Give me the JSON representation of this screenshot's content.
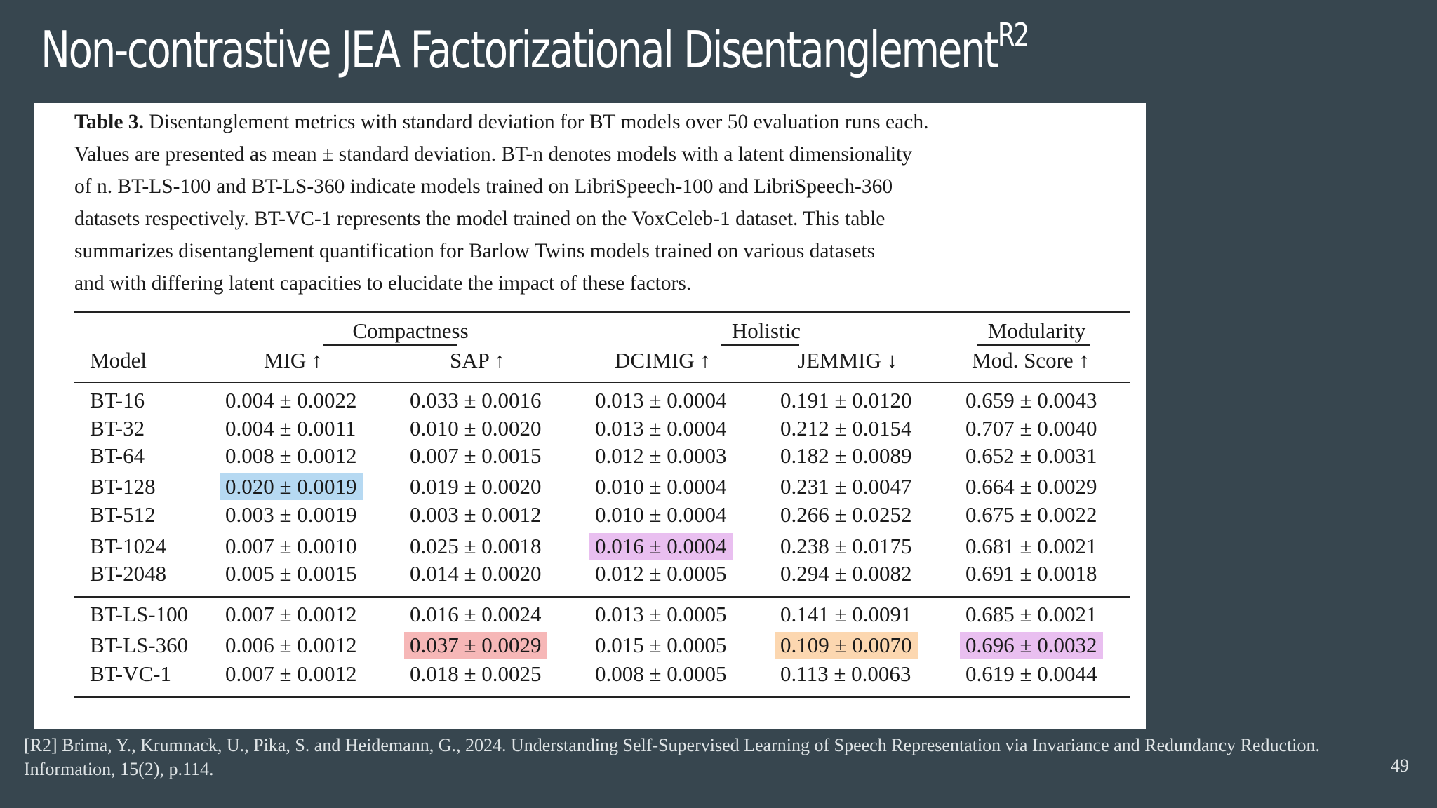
{
  "slide": {
    "title": "Non-contrastive JEA Factorizational Disentanglement",
    "title_sup": "R2",
    "page_number": "49",
    "footer": "[R2] Brima, Y., Krumnack, U., Pika, S. and Heidemann, G., 2024. Understanding Self-Supervised Learning of Speech Representation via Invariance and Redundancy Reduction. Information, 15(2), p.114."
  },
  "caption": {
    "label": "Table 3.",
    "line1": "Disentanglement metrics with standard deviation for BT models over 50 evaluation runs each.",
    "line2": "Values are presented as mean ± standard deviation. BT-n denotes models with a latent dimensionality",
    "line3": "of n.  BT-LS-100 and BT-LS-360 indicate models trained on LibriSpeech-100 and LibriSpeech-360",
    "line4": "datasets respectively. BT-VC-1 represents the model trained on the VoxCeleb-1 dataset. This table",
    "line5": "summarizes disentanglement quantification for Barlow Twins models trained on various datasets",
    "line6": "and with differing latent capacities to elucidate the impact of these factors."
  },
  "table": {
    "groups": [
      "Compactness",
      "Holistic",
      "Modularity"
    ],
    "columns": [
      "Model",
      "MIG ↑",
      "SAP ↑",
      "DCIMIG ↑",
      "JEMMIG ↓",
      "Mod. Score ↑"
    ],
    "rows": [
      [
        "BT-16",
        "0.004 ± 0.0022",
        "0.033 ± 0.0016",
        "0.013 ± 0.0004",
        "0.191 ± 0.0120",
        "0.659 ± 0.0043"
      ],
      [
        "BT-32",
        "0.004 ± 0.0011",
        "0.010 ± 0.0020",
        "0.013 ± 0.0004",
        "0.212 ± 0.0154",
        "0.707 ± 0.0040"
      ],
      [
        "BT-64",
        "0.008 ± 0.0012",
        "0.007 ± 0.0015",
        "0.012 ± 0.0003",
        "0.182 ± 0.0089",
        "0.652 ± 0.0031"
      ],
      [
        "BT-128",
        "0.020 ± 0.0019",
        "0.019 ± 0.0020",
        "0.010 ± 0.0004",
        "0.231 ± 0.0047",
        "0.664 ± 0.0029"
      ],
      [
        "BT-512",
        "0.003 ± 0.0019",
        "0.003 ± 0.0012",
        "0.010 ± 0.0004",
        "0.266 ± 0.0252",
        "0.675 ± 0.0022"
      ],
      [
        "BT-1024",
        "0.007 ± 0.0010",
        "0.025 ± 0.0018",
        "0.016 ± 0.0004",
        "0.238 ± 0.0175",
        "0.681 ± 0.0021"
      ],
      [
        "BT-2048",
        "0.005 ± 0.0015",
        "0.014 ± 0.0020",
        "0.012 ± 0.0005",
        "0.294 ± 0.0082",
        "0.691 ± 0.0018"
      ],
      [
        "BT-LS-100",
        "0.007 ± 0.0012",
        "0.016 ± 0.0024",
        "0.013 ± 0.0005",
        "0.141 ± 0.0091",
        "0.685 ± 0.0021"
      ],
      [
        "BT-LS-360",
        "0.006 ± 0.0012",
        "0.037 ± 0.0029",
        "0.015 ± 0.0005",
        "0.109 ± 0.0070",
        "0.696 ± 0.0032"
      ],
      [
        "BT-VC-1",
        "0.007 ± 0.0012",
        "0.018 ± 0.0025",
        "0.008 ± 0.0005",
        "0.113 ± 0.0063",
        "0.619 ± 0.0044"
      ]
    ],
    "highlights": [
      {
        "row": 3,
        "col": 1,
        "color": "#b6d9f2"
      },
      {
        "row": 5,
        "col": 3,
        "color": "#e9bff0"
      },
      {
        "row": 8,
        "col": 2,
        "color": "#f6b7b7"
      },
      {
        "row": 8,
        "col": 4,
        "color": "#fcd7b0"
      },
      {
        "row": 8,
        "col": 5,
        "color": "#e9bff0"
      }
    ]
  }
}
